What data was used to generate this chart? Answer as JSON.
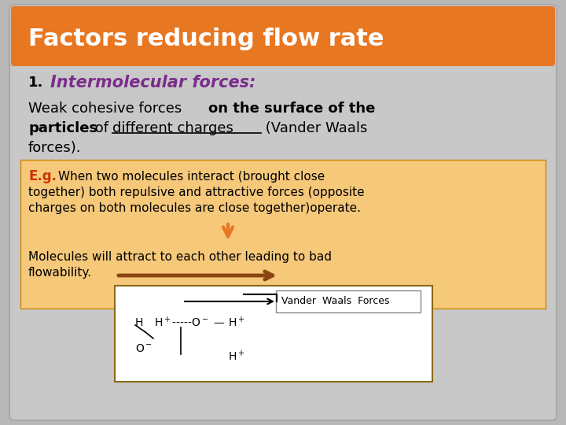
{
  "title": "Factors reducing flow rate",
  "title_bg": "#E87722",
  "title_color": "#FFFFFF",
  "slide_bg": "#C8C8C8",
  "outer_bg": "#B8B8B8",
  "heading_color": "#7B2D8B",
  "heading_text": "Intermolecular forces:",
  "heading_number": "1.",
  "eg_bg": "#F5C87A",
  "eg_label": "E.g.",
  "eg_label_color": "#CC3300",
  "arrow_down_color": "#E87722",
  "arrow_right_color": "#8B4513",
  "vdw_label": "Vander  Waals  Forces",
  "diagram_bg": "#FFFFFF"
}
